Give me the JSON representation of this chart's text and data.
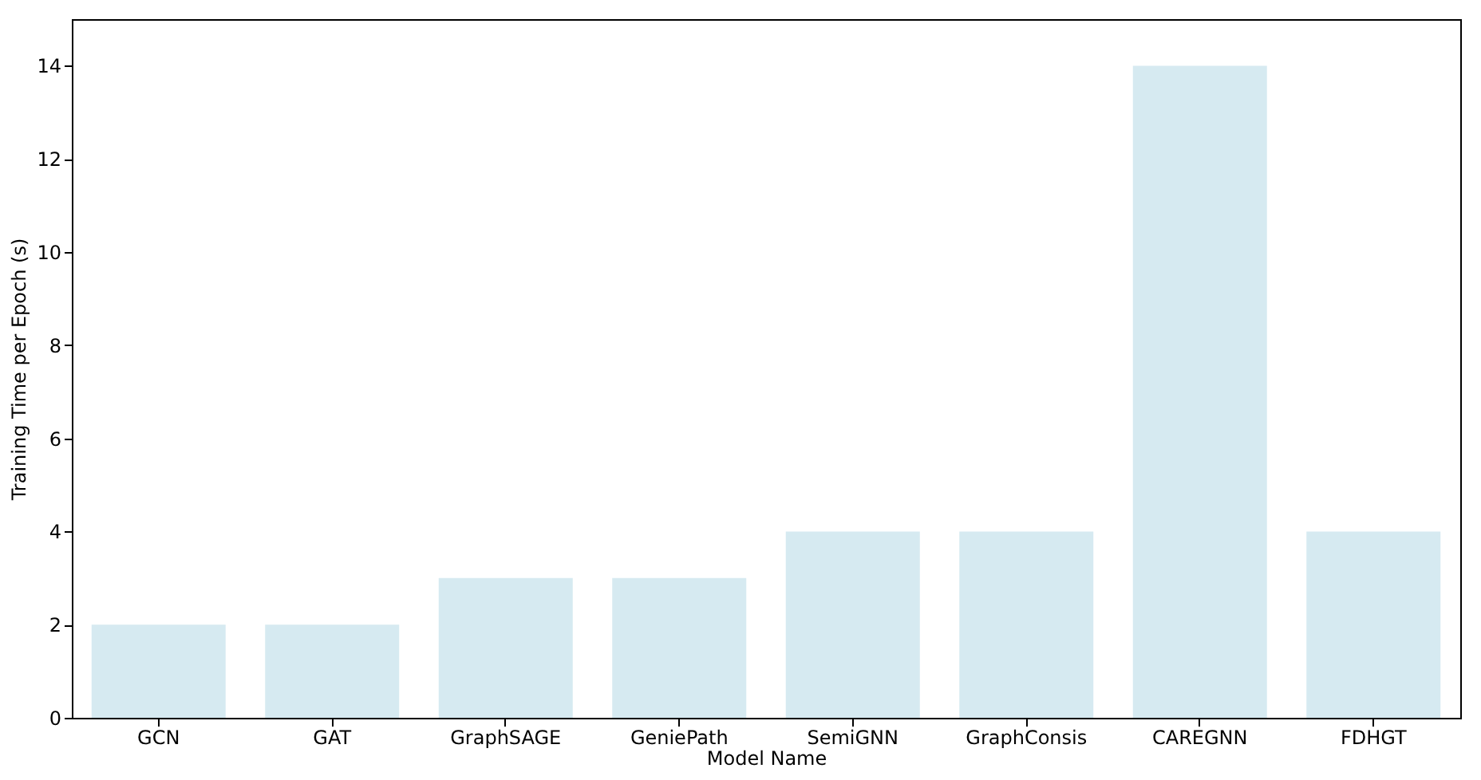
{
  "chart_data": {
    "type": "bar",
    "xlabel": "Model Name",
    "ylabel": "Training Time per Epoch (s)",
    "categories": [
      "GCN",
      "GAT",
      "GraphSAGE",
      "GeniePath",
      "SemiGNN",
      "GraphConsis",
      "CAREGNN",
      "FDHGT"
    ],
    "values": [
      2,
      2,
      3,
      3,
      4,
      4,
      14,
      4
    ],
    "color": "#d6eaf1",
    "ylim": [
      0,
      15
    ],
    "yticks": [
      0,
      2,
      4,
      6,
      8,
      10,
      12,
      14
    ],
    "grid": false
  }
}
